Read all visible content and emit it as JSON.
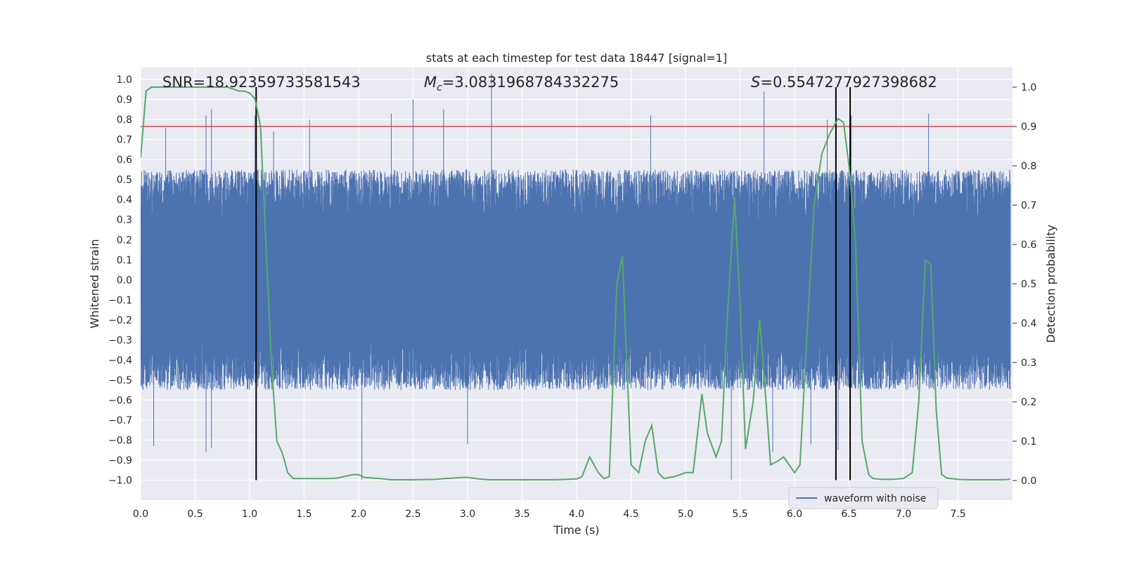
{
  "chart_data": {
    "type": "line",
    "title": "stats at each timestep for test data 18447 [signal=1]",
    "xlabel": "Time (s)",
    "ylabel": "Whitened strain",
    "y2label": "Detection probability",
    "xlim": [
      0.0,
      8.0
    ],
    "ylim": [
      -1.1,
      1.06
    ],
    "y2lim": [
      -0.05,
      1.05
    ],
    "xticks": [
      0.0,
      0.5,
      1.0,
      1.5,
      2.0,
      2.5,
      3.0,
      3.5,
      4.0,
      4.5,
      5.0,
      5.5,
      6.0,
      6.5,
      7.0,
      7.5
    ],
    "xtick_labels": [
      "0.0",
      "0.5",
      "1.0",
      "1.5",
      "2.0",
      "2.5",
      "3.0",
      "3.5",
      "4.0",
      "4.5",
      "5.0",
      "5.5",
      "6.0",
      "6.5",
      "7.0",
      "7.5"
    ],
    "yticks": [
      1.0,
      0.9,
      0.8,
      0.7,
      0.6,
      0.5,
      0.4,
      0.3,
      0.2,
      0.1,
      0.0,
      -0.1,
      -0.2,
      -0.3,
      -0.4,
      -0.5,
      -0.6,
      -0.7,
      -0.8,
      -0.9,
      -1.0
    ],
    "ytick_labels": [
      "1.0",
      "0.9",
      "0.8",
      "0.7",
      "0.6",
      "0.5",
      "0.4",
      "0.3",
      "0.2",
      "0.1",
      "0.0",
      "−0.1",
      "−0.2",
      "−0.3",
      "−0.4",
      "−0.5",
      "−0.6",
      "−0.7",
      "−0.8",
      "−0.9",
      "−1.0"
    ],
    "y2ticks": [
      1.0,
      0.9,
      0.8,
      0.7,
      0.6,
      0.5,
      0.4,
      0.3,
      0.2,
      0.1,
      0.0
    ],
    "y2tick_labels": [
      "1.0",
      "0.9",
      "0.8",
      "0.7",
      "0.6",
      "0.5",
      "0.4",
      "0.3",
      "0.2",
      "0.1",
      "0.0"
    ],
    "grid": true,
    "legend": {
      "position": "bottom-right",
      "entries": [
        "waveform with noise"
      ]
    },
    "annotations": {
      "snr": "SNR=18.92359733581543",
      "mc_symbol": "M",
      "mc_sub": "c",
      "mc_value": "=3.0831968784332275",
      "s_symbol": "S",
      "s_value": "=0.5547277927398682"
    },
    "waveform": {
      "name": "waveform with noise",
      "color": "#4c72b0",
      "t_start": 0.0,
      "t_end": 7.98,
      "typical_positive_peak": 0.55,
      "typical_negative_peak": -0.55,
      "peaks": [
        {
          "t": 0.23,
          "v": 0.76
        },
        {
          "t": 0.6,
          "v": 0.82
        },
        {
          "t": 0.65,
          "v": 0.85
        },
        {
          "t": 1.05,
          "v": 0.82
        },
        {
          "t": 1.22,
          "v": 0.74
        },
        {
          "t": 1.55,
          "v": 0.8
        },
        {
          "t": 2.3,
          "v": 0.83
        },
        {
          "t": 2.5,
          "v": 0.9
        },
        {
          "t": 2.78,
          "v": 0.85
        },
        {
          "t": 3.22,
          "v": 1.03
        },
        {
          "t": 4.68,
          "v": 0.82
        },
        {
          "t": 5.72,
          "v": 0.94
        },
        {
          "t": 6.3,
          "v": 0.8
        },
        {
          "t": 6.52,
          "v": 0.82
        },
        {
          "t": 7.23,
          "v": 0.83
        },
        {
          "t": 0.12,
          "v": -0.83
        },
        {
          "t": 0.6,
          "v": -0.86
        },
        {
          "t": 0.65,
          "v": -0.84
        },
        {
          "t": 2.03,
          "v": -1.0
        },
        {
          "t": 3.0,
          "v": -0.82
        },
        {
          "t": 5.42,
          "v": -1.0
        },
        {
          "t": 5.8,
          "v": -0.86
        },
        {
          "t": 6.4,
          "v": -0.85
        },
        {
          "t": 6.15,
          "v": -0.82
        }
      ]
    },
    "threshold": {
      "color": "#c44e52",
      "y2": 0.9
    },
    "events": {
      "color": "#000000",
      "times": [
        1.06,
        6.38,
        6.51
      ],
      "y_bottom": -1.0,
      "y2_top": 1.0
    },
    "probability": {
      "color": "#55a868",
      "t": [
        0.0,
        0.05,
        0.1,
        0.15,
        0.2,
        0.3,
        0.4,
        0.5,
        0.6,
        0.7,
        0.8,
        0.85,
        0.9,
        0.95,
        1.0,
        1.05,
        1.1,
        1.15,
        1.2,
        1.25,
        1.3,
        1.35,
        1.4,
        1.45,
        1.5,
        1.55,
        1.6,
        1.7,
        1.8,
        1.9,
        1.95,
        2.0,
        2.05,
        2.1,
        2.2,
        2.3,
        2.5,
        2.7,
        2.9,
        3.0,
        3.1,
        3.2,
        3.4,
        3.6,
        3.8,
        3.9,
        4.0,
        4.05,
        4.12,
        4.2,
        4.25,
        4.3,
        4.37,
        4.42,
        4.5,
        4.57,
        4.63,
        4.69,
        4.75,
        4.8,
        4.9,
        5.0,
        5.07,
        5.15,
        5.2,
        5.28,
        5.33,
        5.38,
        5.45,
        5.5,
        5.55,
        5.62,
        5.68,
        5.72,
        5.78,
        5.85,
        5.9,
        5.95,
        6.0,
        6.05,
        6.12,
        6.18,
        6.25,
        6.32,
        6.4,
        6.45,
        6.5,
        6.56,
        6.62,
        6.68,
        6.72,
        6.8,
        6.9,
        7.0,
        7.08,
        7.14,
        7.2,
        7.25,
        7.3,
        7.35,
        7.4,
        7.5,
        7.6,
        7.7,
        7.8,
        7.9,
        7.98
      ],
      "p": [
        0.82,
        0.99,
        1.0,
        1.0,
        1.0,
        1.0,
        1.0,
        1.0,
        1.0,
        1.0,
        1.0,
        0.995,
        0.99,
        0.99,
        0.985,
        0.97,
        0.9,
        0.6,
        0.3,
        0.1,
        0.07,
        0.02,
        0.005,
        0.005,
        0.005,
        0.005,
        0.005,
        0.005,
        0.006,
        0.012,
        0.015,
        0.015,
        0.008,
        0.007,
        0.005,
        0.002,
        0.002,
        0.003,
        0.007,
        0.008,
        0.004,
        0.002,
        0.002,
        0.002,
        0.002,
        0.003,
        0.004,
        0.01,
        0.06,
        0.02,
        0.005,
        0.01,
        0.5,
        0.57,
        0.04,
        0.02,
        0.1,
        0.14,
        0.02,
        0.005,
        0.01,
        0.02,
        0.02,
        0.22,
        0.12,
        0.06,
        0.1,
        0.4,
        0.72,
        0.45,
        0.08,
        0.2,
        0.41,
        0.27,
        0.04,
        0.05,
        0.06,
        0.04,
        0.02,
        0.04,
        0.4,
        0.7,
        0.83,
        0.88,
        0.92,
        0.91,
        0.8,
        0.6,
        0.1,
        0.015,
        0.005,
        0.003,
        0.003,
        0.005,
        0.02,
        0.2,
        0.56,
        0.55,
        0.18,
        0.015,
        0.006,
        0.003,
        0.002,
        0.002,
        0.002,
        0.002,
        0.003
      ]
    }
  }
}
